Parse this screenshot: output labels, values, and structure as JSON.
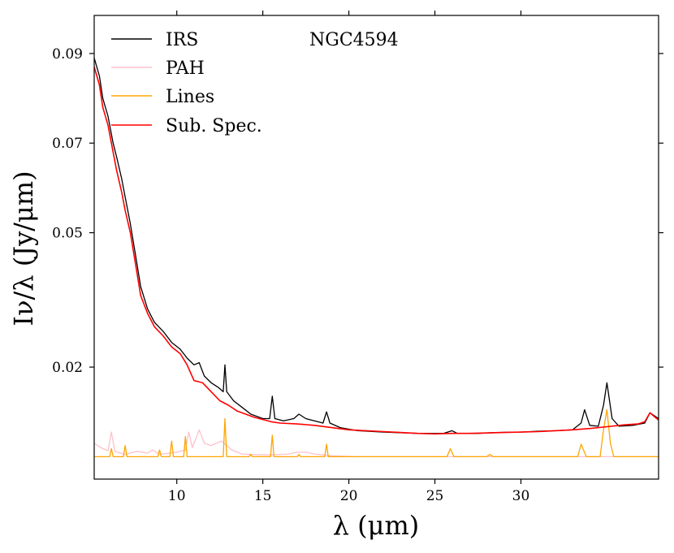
{
  "chart_data": {
    "type": "line",
    "annotation": "NGC4594",
    "xlabel": "λ (μm)",
    "ylabel": "Iν/λ (Jy/μm)",
    "xlim": [
      5.2,
      38.0
    ],
    "ylim": [
      -0.005,
      0.0985
    ],
    "x_ticks": [
      10,
      15,
      20,
      25,
      30
    ],
    "y_ticks": [
      0.02,
      0.05,
      0.07,
      0.09
    ],
    "y_tick_labels": [
      "0.02",
      "0.05",
      "0.07",
      "0.09"
    ],
    "legend_position": "top-left",
    "series": [
      {
        "name": "IRS",
        "color": "#000000",
        "points": [
          [
            5.2,
            0.089
          ],
          [
            5.5,
            0.085
          ],
          [
            5.7,
            0.08
          ],
          [
            6.0,
            0.076
          ],
          [
            6.3,
            0.07
          ],
          [
            6.5,
            0.067
          ],
          [
            6.8,
            0.062
          ],
          [
            7.0,
            0.058
          ],
          [
            7.3,
            0.052
          ],
          [
            7.6,
            0.045
          ],
          [
            7.9,
            0.038
          ],
          [
            8.3,
            0.033
          ],
          [
            8.7,
            0.03
          ],
          [
            9.2,
            0.028
          ],
          [
            9.7,
            0.0255
          ],
          [
            10.2,
            0.024
          ],
          [
            10.6,
            0.022
          ],
          [
            11.0,
            0.0205
          ],
          [
            11.3,
            0.021
          ],
          [
            11.6,
            0.018
          ],
          [
            12.0,
            0.0165
          ],
          [
            12.4,
            0.0155
          ],
          [
            12.7,
            0.0145
          ],
          [
            12.8,
            0.0205
          ],
          [
            12.9,
            0.0145
          ],
          [
            13.3,
            0.0125
          ],
          [
            13.8,
            0.011
          ],
          [
            14.3,
            0.0095
          ],
          [
            15.0,
            0.0085
          ],
          [
            15.4,
            0.0085
          ],
          [
            15.55,
            0.0135
          ],
          [
            15.7,
            0.0085
          ],
          [
            16.2,
            0.008
          ],
          [
            16.8,
            0.0085
          ],
          [
            17.1,
            0.0095
          ],
          [
            17.5,
            0.0085
          ],
          [
            18.0,
            0.008
          ],
          [
            18.5,
            0.0075
          ],
          [
            18.7,
            0.01
          ],
          [
            18.9,
            0.0075
          ],
          [
            19.5,
            0.0065
          ],
          [
            20.5,
            0.0058
          ],
          [
            22.0,
            0.0055
          ],
          [
            24.0,
            0.0052
          ],
          [
            25.5,
            0.0052
          ],
          [
            26.0,
            0.0058
          ],
          [
            26.3,
            0.0052
          ],
          [
            27.5,
            0.0052
          ],
          [
            28.5,
            0.0054
          ],
          [
            30.0,
            0.0055
          ],
          [
            31.0,
            0.0057
          ],
          [
            32.0,
            0.0058
          ],
          [
            33.0,
            0.006
          ],
          [
            33.5,
            0.0075
          ],
          [
            33.7,
            0.0105
          ],
          [
            34.0,
            0.007
          ],
          [
            34.5,
            0.0068
          ],
          [
            34.8,
            0.0115
          ],
          [
            35.0,
            0.0165
          ],
          [
            35.3,
            0.0085
          ],
          [
            35.7,
            0.0068
          ],
          [
            36.5,
            0.007
          ],
          [
            37.2,
            0.0075
          ],
          [
            37.5,
            0.0098
          ],
          [
            38.0,
            0.0085
          ]
        ]
      },
      {
        "name": "PAH",
        "color": "#ffc0cb",
        "points": [
          [
            5.2,
            0.003
          ],
          [
            5.6,
            0.002
          ],
          [
            6.0,
            0.0013
          ],
          [
            6.2,
            0.0055
          ],
          [
            6.4,
            0.0012
          ],
          [
            7.0,
            0.0005
          ],
          [
            7.7,
            0.0012
          ],
          [
            8.3,
            0.0008
          ],
          [
            8.6,
            0.0015
          ],
          [
            9.0,
            0.0005
          ],
          [
            10.0,
            0.001
          ],
          [
            10.5,
            0.0015
          ],
          [
            10.7,
            0.0055
          ],
          [
            10.9,
            0.002
          ],
          [
            11.3,
            0.006
          ],
          [
            11.6,
            0.003
          ],
          [
            12.0,
            0.0025
          ],
          [
            12.6,
            0.0035
          ],
          [
            13.2,
            0.0015
          ],
          [
            13.8,
            0.0006
          ],
          [
            14.3,
            0.0005
          ],
          [
            15.5,
            0.0004
          ],
          [
            16.5,
            0.0006
          ],
          [
            17.0,
            0.001
          ],
          [
            17.5,
            0.001
          ],
          [
            18.0,
            0.0006
          ],
          [
            19.0,
            0.0002
          ],
          [
            20.5,
            0.0
          ],
          [
            38.0,
            0.0
          ]
        ]
      },
      {
        "name": "Lines",
        "color": "#ffa500",
        "points": [
          [
            5.2,
            0.0
          ],
          [
            6.1,
            0.0
          ],
          [
            6.2,
            0.0018
          ],
          [
            6.3,
            0.0
          ],
          [
            6.9,
            0.0
          ],
          [
            7.0,
            0.0025
          ],
          [
            7.1,
            0.0
          ],
          [
            8.9,
            0.0
          ],
          [
            9.0,
            0.0015
          ],
          [
            9.1,
            0.0
          ],
          [
            9.6,
            0.0
          ],
          [
            9.7,
            0.0035
          ],
          [
            9.8,
            0.0
          ],
          [
            10.4,
            0.0
          ],
          [
            10.5,
            0.0045
          ],
          [
            10.6,
            0.0
          ],
          [
            12.7,
            0.0
          ],
          [
            12.8,
            0.0085
          ],
          [
            12.9,
            0.0
          ],
          [
            14.2,
            0.0
          ],
          [
            14.3,
            0.0005
          ],
          [
            14.4,
            0.0
          ],
          [
            15.45,
            0.0
          ],
          [
            15.55,
            0.0048
          ],
          [
            15.65,
            0.0
          ],
          [
            17.0,
            0.0
          ],
          [
            17.1,
            0.0005
          ],
          [
            17.2,
            0.0
          ],
          [
            18.6,
            0.0
          ],
          [
            18.7,
            0.0028
          ],
          [
            18.8,
            0.0
          ],
          [
            25.7,
            0.0
          ],
          [
            25.9,
            0.0018
          ],
          [
            26.1,
            0.0
          ],
          [
            28.0,
            0.0
          ],
          [
            28.2,
            0.0005
          ],
          [
            28.4,
            0.0
          ],
          [
            33.3,
            0.0
          ],
          [
            33.5,
            0.0028
          ],
          [
            33.8,
            0.0
          ],
          [
            34.6,
            0.0
          ],
          [
            34.8,
            0.006
          ],
          [
            35.0,
            0.0105
          ],
          [
            35.2,
            0.003
          ],
          [
            35.4,
            0.0
          ],
          [
            38.0,
            0.0
          ]
        ]
      },
      {
        "name": "Sub. Spec.",
        "color": "#ff0000",
        "points": [
          [
            5.2,
            0.087
          ],
          [
            5.5,
            0.083
          ],
          [
            5.7,
            0.078
          ],
          [
            6.0,
            0.074
          ],
          [
            6.3,
            0.068
          ],
          [
            6.5,
            0.064
          ],
          [
            6.8,
            0.059
          ],
          [
            7.0,
            0.055
          ],
          [
            7.3,
            0.05
          ],
          [
            7.6,
            0.043
          ],
          [
            7.9,
            0.036
          ],
          [
            8.3,
            0.032
          ],
          [
            8.7,
            0.029
          ],
          [
            9.2,
            0.027
          ],
          [
            9.7,
            0.0245
          ],
          [
            10.2,
            0.023
          ],
          [
            10.6,
            0.0205
          ],
          [
            11.0,
            0.017
          ],
          [
            11.5,
            0.0165
          ],
          [
            12.0,
            0.0145
          ],
          [
            12.5,
            0.0125
          ],
          [
            13.0,
            0.0115
          ],
          [
            13.5,
            0.0102
          ],
          [
            14.0,
            0.0095
          ],
          [
            14.5,
            0.0088
          ],
          [
            15.0,
            0.0083
          ],
          [
            15.5,
            0.0078
          ],
          [
            16.0,
            0.0075
          ],
          [
            17.0,
            0.0073
          ],
          [
            18.0,
            0.007
          ],
          [
            19.0,
            0.0065
          ],
          [
            20.0,
            0.006
          ],
          [
            21.0,
            0.0058
          ],
          [
            22.0,
            0.0056
          ],
          [
            23.0,
            0.0054
          ],
          [
            24.0,
            0.0052
          ],
          [
            25.0,
            0.0051
          ],
          [
            26.0,
            0.0052
          ],
          [
            27.0,
            0.0052
          ],
          [
            28.0,
            0.0053
          ],
          [
            29.0,
            0.0054
          ],
          [
            30.0,
            0.0055
          ],
          [
            31.0,
            0.0056
          ],
          [
            32.0,
            0.0058
          ],
          [
            33.0,
            0.006
          ],
          [
            34.0,
            0.0063
          ],
          [
            35.0,
            0.0067
          ],
          [
            36.0,
            0.0071
          ],
          [
            36.8,
            0.0073
          ],
          [
            37.2,
            0.0078
          ],
          [
            37.5,
            0.0098
          ],
          [
            37.8,
            0.0088
          ],
          [
            38.0,
            0.0082
          ]
        ]
      }
    ]
  }
}
